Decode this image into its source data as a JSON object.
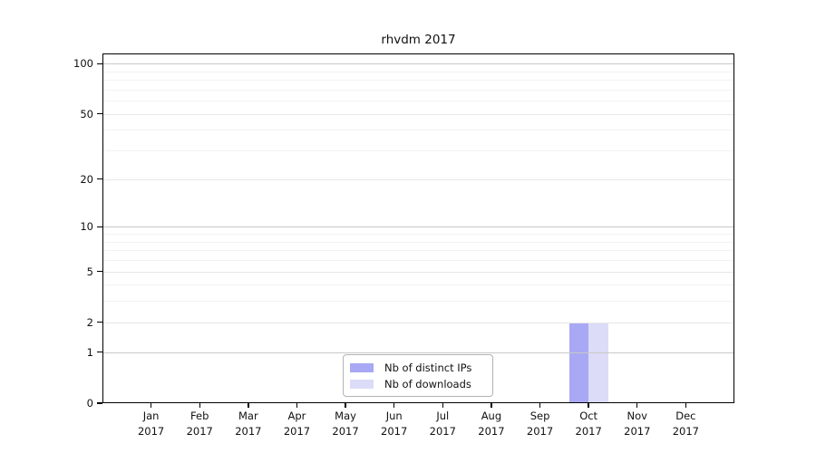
{
  "chart_data": {
    "type": "bar",
    "title": "rhvdm 2017",
    "categories": [
      "Jan",
      "Feb",
      "Mar",
      "Apr",
      "May",
      "Jun",
      "Jul",
      "Aug",
      "Sep",
      "Oct",
      "Nov",
      "Dec"
    ],
    "year_label": "2017",
    "series": [
      {
        "name": "Nb of distinct IPs",
        "color": "#a8a8f4",
        "values": [
          0,
          0,
          0,
          0,
          0,
          0,
          0,
          0,
          0,
          2,
          0,
          0
        ]
      },
      {
        "name": "Nb of downloads",
        "color": "#dcdcf8",
        "values": [
          0,
          0,
          0,
          0,
          0,
          0,
          0,
          0,
          0,
          2,
          0,
          0
        ]
      }
    ],
    "xlabel": "",
    "ylabel": "",
    "y_scale": "log1p",
    "y_ticks": [
      0,
      1,
      2,
      5,
      10,
      20,
      50,
      100
    ],
    "y_minor_ticks": [
      3,
      4,
      6,
      7,
      8,
      9,
      30,
      40,
      60,
      70,
      80,
      90
    ],
    "ylim": [
      0,
      115
    ],
    "grid": true,
    "legend_position": "lower center"
  }
}
